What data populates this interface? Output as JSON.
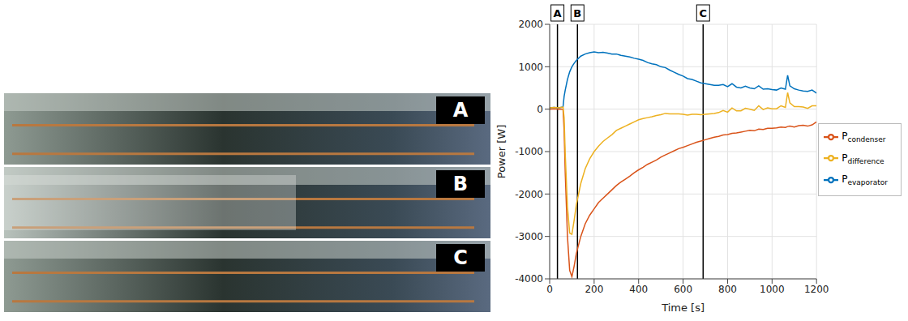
{
  "photo_panels": [
    "A",
    "B",
    "C"
  ],
  "chart_data": {
    "type": "line",
    "x_label": "Time [s]",
    "y_label": "Power [W]",
    "x": [
      0,
      20,
      40,
      60,
      65,
      70,
      80,
      90,
      100,
      110,
      120,
      140,
      160,
      180,
      200,
      220,
      240,
      260,
      280,
      300,
      320,
      340,
      360,
      380,
      400,
      420,
      440,
      460,
      480,
      500,
      520,
      540,
      560,
      580,
      600,
      620,
      640,
      660,
      680,
      700,
      720,
      740,
      760,
      780,
      800,
      820,
      840,
      860,
      880,
      900,
      920,
      940,
      960,
      980,
      1000,
      1020,
      1040,
      1060,
      1070,
      1080,
      1100,
      1120,
      1140,
      1160,
      1180,
      1200
    ],
    "series": [
      {
        "name": "Pevaporator",
        "color": "#0072bd",
        "values": [
          30,
          40,
          30,
          50,
          300,
          450,
          700,
          880,
          1000,
          1080,
          1150,
          1250,
          1300,
          1330,
          1350,
          1330,
          1340,
          1320,
          1300,
          1300,
          1270,
          1250,
          1230,
          1200,
          1180,
          1150,
          1100,
          1070,
          1050,
          1000,
          980,
          920,
          870,
          820,
          780,
          720,
          700,
          660,
          620,
          600,
          580,
          560,
          560,
          580,
          530,
          600,
          520,
          500,
          540,
          500,
          480,
          550,
          470,
          480,
          460,
          450,
          500,
          470,
          800,
          550,
          480,
          450,
          430,
          420,
          450,
          380
        ]
      },
      {
        "name": "Pcondenser",
        "color": "#d95319",
        "values": [
          0,
          10,
          0,
          0,
          -500,
          -1500,
          -3000,
          -3800,
          -3950,
          -3700,
          -3400,
          -3000,
          -2700,
          -2500,
          -2350,
          -2200,
          -2100,
          -2000,
          -1900,
          -1800,
          -1720,
          -1650,
          -1580,
          -1500,
          -1430,
          -1370,
          -1300,
          -1250,
          -1200,
          -1130,
          -1080,
          -1030,
          -980,
          -930,
          -900,
          -860,
          -820,
          -780,
          -750,
          -720,
          -690,
          -660,
          -640,
          -610,
          -600,
          -570,
          -560,
          -540,
          -520,
          -500,
          -510,
          -470,
          -480,
          -450,
          -450,
          -440,
          -420,
          -430,
          -410,
          -400,
          -420,
          -390,
          -380,
          -400,
          -370,
          -300
        ]
      },
      {
        "name": "Pdifference",
        "color": "#edb120",
        "values": [
          30,
          40,
          30,
          50,
          -200,
          -1050,
          -2300,
          -2920,
          -2950,
          -2620,
          -2250,
          -1750,
          -1400,
          -1170,
          -1000,
          -870,
          -760,
          -680,
          -600,
          -500,
          -450,
          -400,
          -350,
          -300,
          -250,
          -220,
          -200,
          -180,
          -150,
          -130,
          -100,
          -110,
          -110,
          -110,
          -120,
          -140,
          -120,
          -120,
          -130,
          -120,
          -110,
          -100,
          -80,
          -30,
          -70,
          30,
          -40,
          -40,
          20,
          0,
          -30,
          80,
          -10,
          30,
          10,
          10,
          80,
          40,
          390,
          150,
          60,
          60,
          50,
          20,
          80,
          80
        ]
      }
    ],
    "xlim": [
      0,
      1200
    ],
    "xticks": [
      0,
      200,
      400,
      600,
      800,
      1000,
      1200
    ],
    "ylim": [
      -4000,
      2000
    ],
    "yticks": [
      -4000,
      -3000,
      -2000,
      -1000,
      0,
      1000,
      2000
    ],
    "grid": true,
    "legend": "right",
    "annotations": [
      {
        "x": 35,
        "label": "A"
      },
      {
        "x": 125,
        "label": "B"
      },
      {
        "x": 690,
        "label": "C"
      }
    ]
  }
}
